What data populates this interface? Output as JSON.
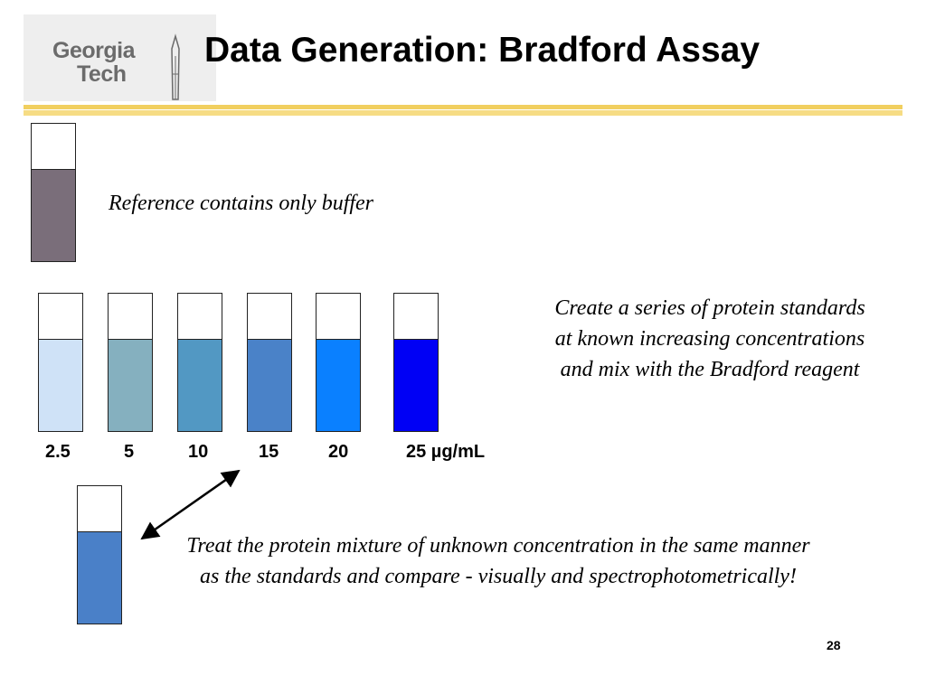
{
  "header": {
    "logo_line1": "Georgia",
    "logo_line2": "Tech",
    "title": "Data Generation: Bradford Assay"
  },
  "reference": {
    "text": "Reference contains only buffer",
    "liquid_color": "#7a6e7a"
  },
  "standards": {
    "tubes": [
      {
        "label": "2.5",
        "color": "#cfe2f7"
      },
      {
        "label": "5",
        "color": "#85b0bf"
      },
      {
        "label": "10",
        "color": "#5298c3"
      },
      {
        "label": "15",
        "color": "#4a82c8"
      },
      {
        "label": "20",
        "color": "#0a80ff"
      },
      {
        "label": "25 µg/mL",
        "color": "#0000f5"
      }
    ],
    "description": "Create a series of protein standards at known increasing concentrations and mix with the Bradford reagent"
  },
  "unknown": {
    "liquid_color": "#4a80c8",
    "text": "Treat the protein mixture of unknown concentration in the same manner as the standards and compare - visually and spectrophotometrically!"
  },
  "footer": {
    "page_number": "28"
  },
  "colors": {
    "accent_rule": "#f1cf5f",
    "logo_gray": "#6b6b6b"
  }
}
